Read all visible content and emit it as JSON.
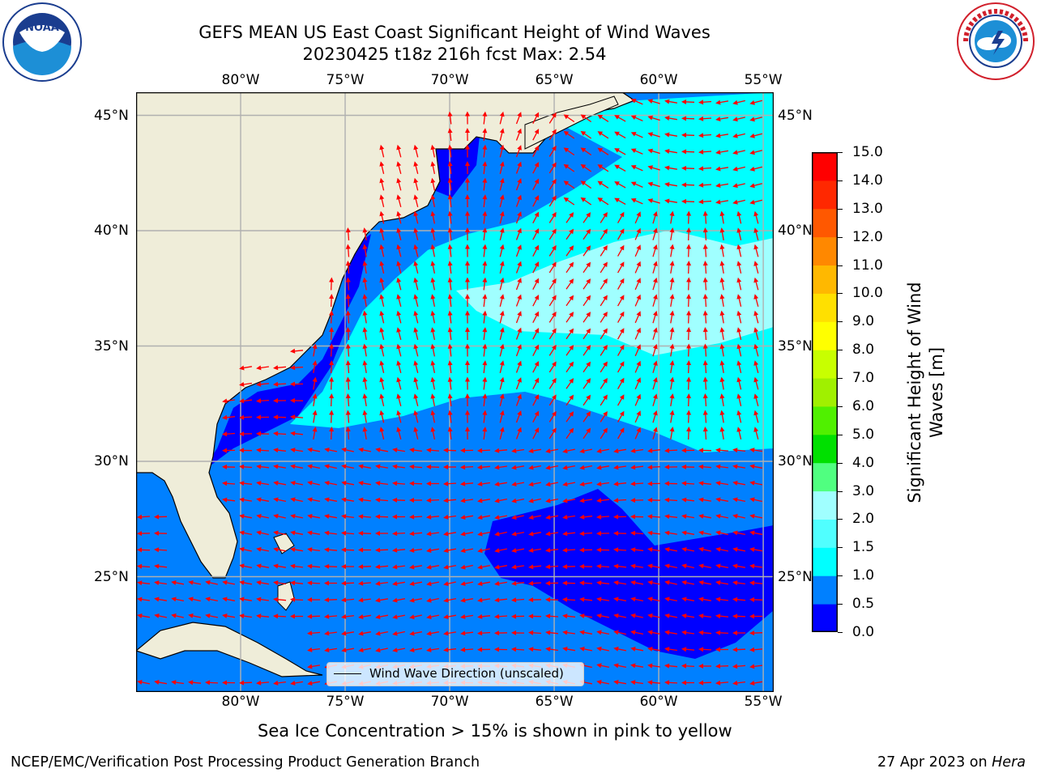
{
  "header": {
    "title_line1": "GEFS MEAN US East Coast Significant Height of Wind Waves",
    "title_line2": "20230425 t18z 216h fcst   Max: 2.54"
  },
  "logos": {
    "left": {
      "icon": "noaa-logo-icon",
      "text": "NOAA",
      "ring_text": "NATIONAL OCEANIC AND ATMOSPHERIC ADMINISTRATION · U.S. DEPARTMENT OF COMMERCE"
    },
    "right": {
      "icon": "nws-logo-icon",
      "ring_text": "NATIONAL WEATHER SERVICE"
    }
  },
  "map": {
    "lon_labels": [
      "80°W",
      "75°W",
      "70°W",
      "65°W",
      "60°W",
      "55°W"
    ],
    "lat_labels": [
      "45°N",
      "40°N",
      "35°N",
      "30°N",
      "25°N"
    ],
    "lon_values": [
      -80,
      -75,
      -70,
      -65,
      -60,
      -55
    ],
    "lat_values": [
      45,
      40,
      35,
      30,
      25
    ],
    "extent": {
      "lon": [
        -85,
        -54.5
      ],
      "lat": [
        20,
        46
      ]
    },
    "colors": {
      "land": "#efedd9",
      "ocean_low": "#0000ff",
      "ocean_mid": "#0080ff",
      "ocean_high": "#00ffff",
      "ocean_top": "#a0ffff",
      "arrows": "#ff0000",
      "grid": "#b0b0b0"
    },
    "legend_label": "Wind Wave Direction (unscaled)",
    "note": "Sea Ice Concentration > 15% is shown in pink to yellow"
  },
  "colorbar": {
    "label_line1": "Significant Height of Wind",
    "label_line2": "Waves [m]",
    "ticks": [
      "15.0",
      "14.0",
      "13.0",
      "12.0",
      "11.0",
      "10.0",
      "9.0",
      "8.0",
      "7.0",
      "6.0",
      "5.0",
      "4.0",
      "3.0",
      "2.0",
      "1.5",
      "1.0",
      "0.5",
      "0.0"
    ],
    "levels": [
      0,
      0.5,
      1.0,
      1.5,
      2.0,
      3.0,
      4.0,
      5.0,
      6.0,
      7.0,
      8.0,
      9.0,
      10.0,
      11.0,
      12.0,
      13.0,
      14.0,
      15.0
    ],
    "colors": [
      "#0000ff",
      "#0080ff",
      "#00ffff",
      "#50ffff",
      "#a0ffff",
      "#50ff80",
      "#00e000",
      "#50f000",
      "#a0f000",
      "#c8ff00",
      "#ffff00",
      "#ffe000",
      "#ffb800",
      "#ff8800",
      "#ff5800",
      "#ff2800",
      "#ff0000"
    ]
  },
  "footer": {
    "left": "NCEP/EMC/Verification Post Processing Product Generation Branch",
    "right_date": "27 Apr 2023 on ",
    "right_host": "Hera"
  }
}
